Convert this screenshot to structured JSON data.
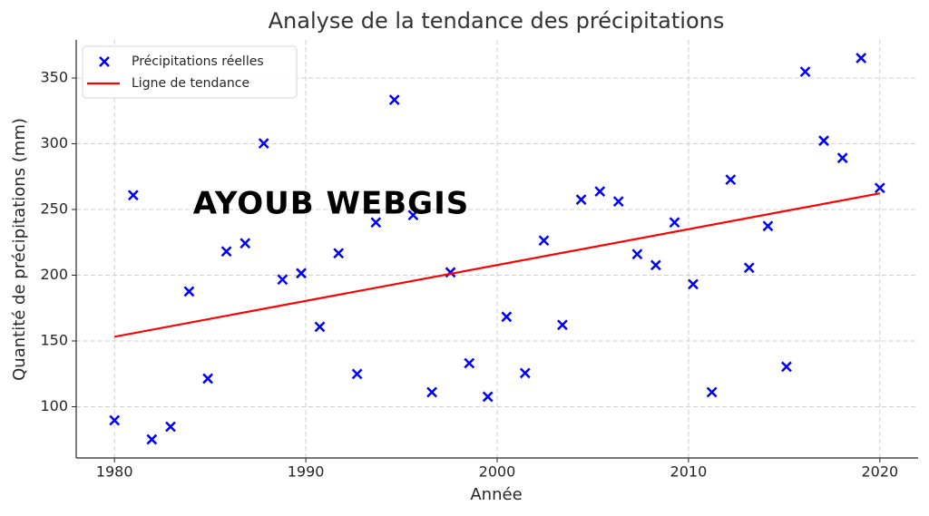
{
  "chart_data": {
    "type": "scatter",
    "title": "Analyse de la tendance des précipitations",
    "xlabel": "Année",
    "ylabel": "Quantité de précipitations (mm)",
    "watermark": "AYOUB WEBGIS",
    "xlim": [
      1978,
      2022
    ],
    "xticks": [
      1980,
      1990,
      2000,
      2010,
      2020
    ],
    "ylim": [
      61,
      379
    ],
    "yticks": [
      100,
      150,
      200,
      250,
      300,
      350
    ],
    "grid": true,
    "legend": "upper left",
    "series": [
      {
        "name": "Précipitations réelles",
        "color": "#0000ff",
        "marker": "x",
        "x": [
          1980,
          1980.98,
          1981.95,
          1982.93,
          1983.9,
          1984.88,
          1985.85,
          1986.83,
          1987.8,
          1988.78,
          1989.76,
          1990.73,
          1991.71,
          1992.68,
          1993.66,
          1994.63,
          1995.61,
          1996.59,
          1997.56,
          1998.54,
          1999.51,
          2000.49,
          2001.46,
          2002.44,
          2003.41,
          2004.39,
          2005.37,
          2006.34,
          2007.32,
          2008.29,
          2009.27,
          2010.24,
          2011.22,
          2012.2,
          2013.17,
          2014.15,
          2015.12,
          2016.1,
          2017.07,
          2018.05,
          2019.02,
          2020
        ],
        "values": [
          89.6,
          260.9,
          75.1,
          84.8,
          187.7,
          121.4,
          218.1,
          224.3,
          300.3,
          196.7,
          201.5,
          160.8,
          216.7,
          124.9,
          240.2,
          333.4,
          245.7,
          111,
          202.2,
          133.1,
          107.6,
          168.4,
          125.6,
          226.4,
          162.2,
          257.5,
          263.7,
          256.1,
          216,
          207.7,
          240.2,
          193.2,
          111,
          272.7,
          205.7,
          237.4,
          130.4,
          354.8,
          302.3,
          289.2,
          365.2,
          266.4
        ]
      },
      {
        "name": "Ligne de tendance",
        "color": "#ff0000",
        "type": "line",
        "x": [
          1980,
          2020
        ],
        "values": [
          153.2,
          262.3
        ]
      }
    ]
  }
}
